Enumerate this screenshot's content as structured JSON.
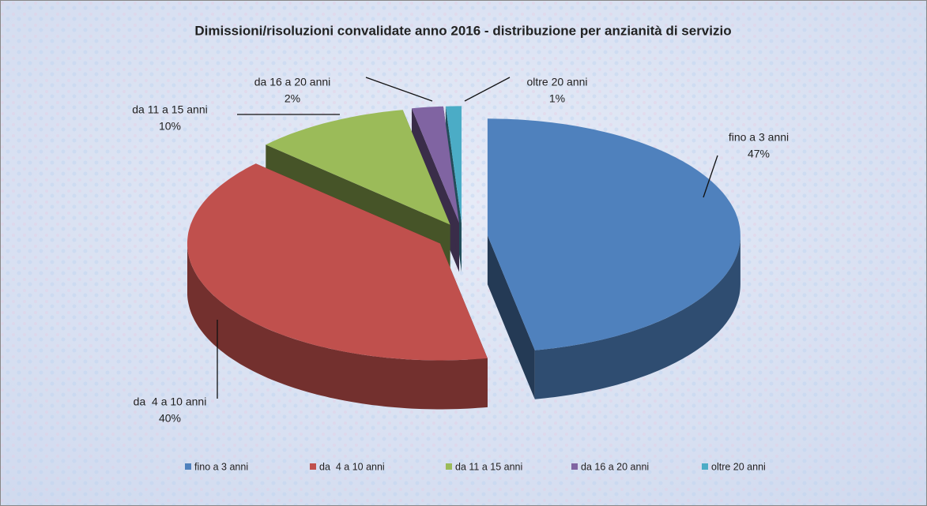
{
  "chart_data": {
    "type": "pie",
    "title": "Dimissioni/risoluzioni convalidate anno 2016 - distribuzione per anzianità di servizio",
    "categories": [
      "fino a 3 anni",
      "da  4 a 10 anni",
      "da 11 a 15 anni",
      "da 16 a 20 anni",
      "oltre 20 anni"
    ],
    "values": [
      47,
      40,
      10,
      2,
      1
    ],
    "value_labels": [
      "47%",
      "40%",
      "10%",
      "2%",
      "1%"
    ],
    "colors": [
      "#4f81bd",
      "#c0504d",
      "#9bbb59",
      "#8064a2",
      "#4bacc6"
    ],
    "legend": "bottom"
  }
}
